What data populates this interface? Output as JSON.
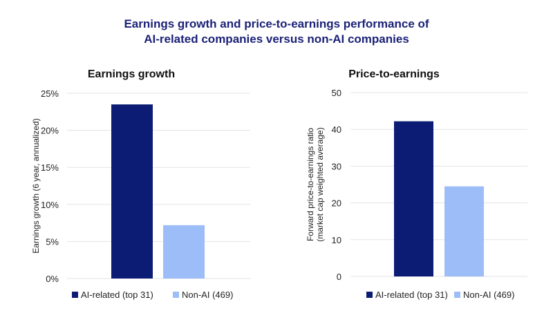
{
  "title_line1": "Earnings growth and price-to-earnings performance of",
  "title_line2": "AI-related companies versus non-AI companies",
  "colors": {
    "ai": "#0c1c74",
    "non_ai": "#9dbdf8",
    "title": "#1b2177",
    "grid": "#e3e3e3"
  },
  "chart_data": [
    {
      "type": "bar",
      "title": "Earnings growth",
      "ylabel": "Earnings growth (6 year, annualized)",
      "ylim": [
        0,
        25
      ],
      "ticks": [
        "0%",
        "5%",
        "10%",
        "15%",
        "20%",
        "25%"
      ],
      "tick_values": [
        0,
        5,
        10,
        15,
        20,
        25
      ],
      "grid": true,
      "legend_position": "bottom",
      "series": [
        {
          "name": "AI-related (top 31)",
          "value": 23.5
        },
        {
          "name": "Non-AI (469)",
          "value": 7.2
        }
      ]
    },
    {
      "type": "bar",
      "title": "Price-to-earnings",
      "ylabel": [
        "Forward price-to-earnings ratio",
        "(market cap weighted average)"
      ],
      "ylim": [
        0,
        50
      ],
      "ticks": [
        "0",
        "10",
        "20",
        "30",
        "40",
        "50"
      ],
      "tick_values": [
        0,
        10,
        20,
        30,
        40,
        50
      ],
      "grid": true,
      "legend_position": "bottom",
      "series": [
        {
          "name": "AI-related (top 31)",
          "value": 42.2
        },
        {
          "name": "Non-AI (469)",
          "value": 24.5
        }
      ]
    }
  ]
}
